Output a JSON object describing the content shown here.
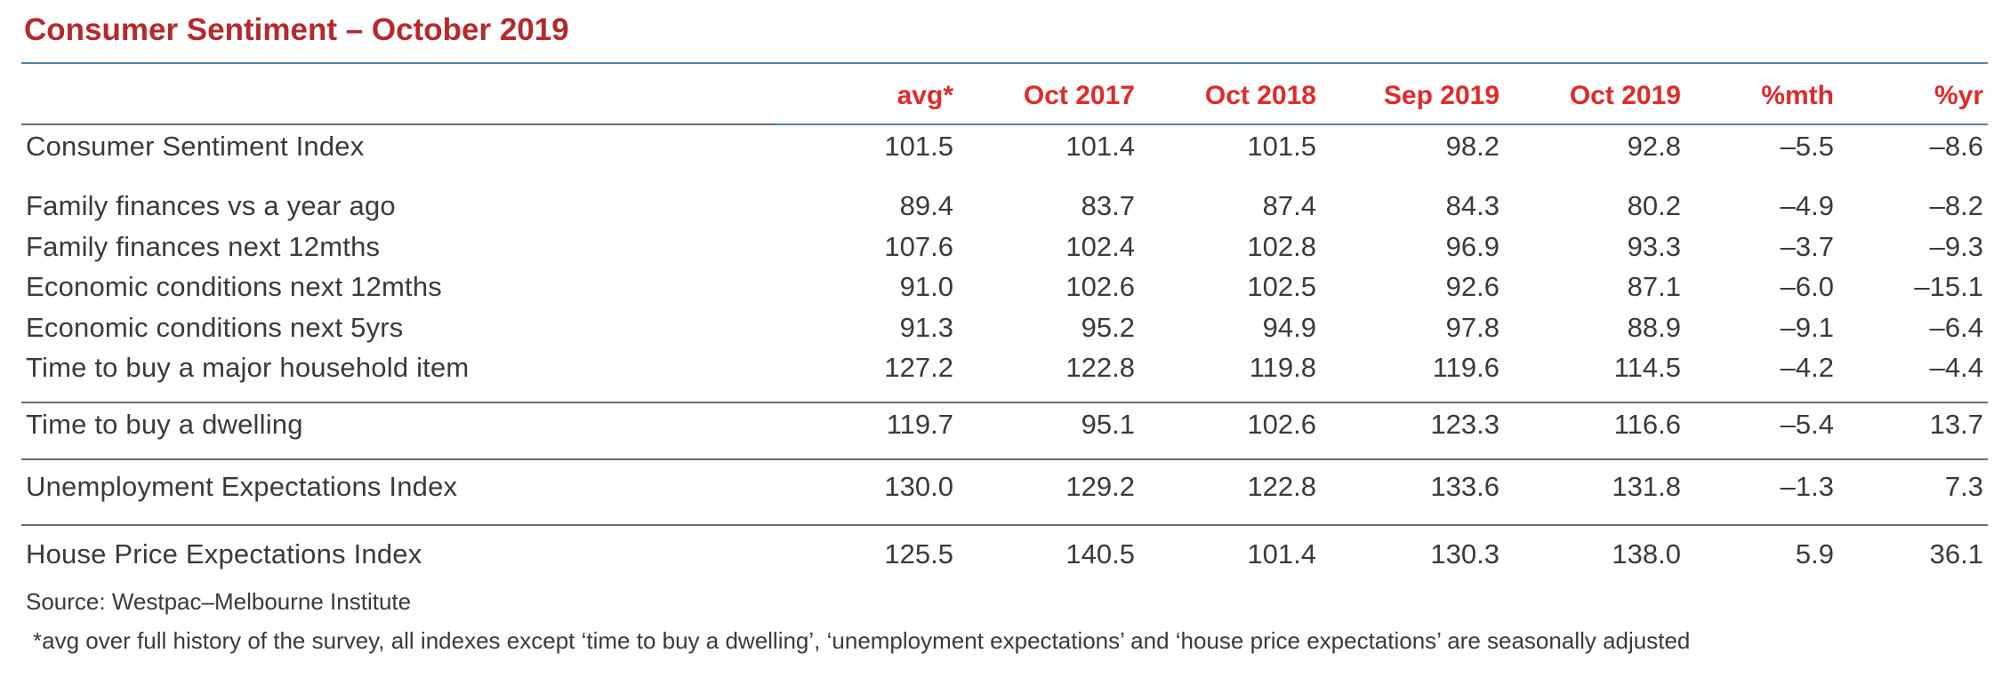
{
  "title": "Consumer Sentiment – October 2019",
  "columns": [
    "avg*",
    "Oct 2017",
    "Oct 2018",
    "Sep 2019",
    "Oct 2019",
    "%mth",
    "%yr"
  ],
  "rows": [
    {
      "label": "Consumer Sentiment Index",
      "values": [
        "101.5",
        "101.4",
        "101.5",
        "98.2",
        "92.8",
        "–5.5",
        "–8.6"
      ]
    },
    {
      "label": "Family finances vs a year ago",
      "values": [
        "89.4",
        "83.7",
        "87.4",
        "84.3",
        "80.2",
        "–4.9",
        "–8.2"
      ]
    },
    {
      "label": "Family finances next 12mths",
      "values": [
        "107.6",
        "102.4",
        "102.8",
        "96.9",
        "93.3",
        "–3.7",
        "–9.3"
      ]
    },
    {
      "label": "Economic conditions next 12mths",
      "values": [
        "91.0",
        "102.6",
        "102.5",
        "92.6",
        "87.1",
        "–6.0",
        "–15.1"
      ]
    },
    {
      "label": "Economic conditions next 5yrs",
      "values": [
        "91.3",
        "95.2",
        "94.9",
        "97.8",
        "88.9",
        "–9.1",
        "–6.4"
      ]
    },
    {
      "label": "Time to buy a major household item",
      "values": [
        "127.2",
        "122.8",
        "119.8",
        "119.6",
        "114.5",
        "–4.2",
        "–4.4"
      ]
    },
    {
      "label": "Time to buy a dwelling",
      "values": [
        "119.7",
        "95.1",
        "102.6",
        "123.3",
        "116.6",
        "–5.4",
        "13.7"
      ]
    },
    {
      "label": "Unemployment Expectations Index",
      "values": [
        "130.0",
        "129.2",
        "122.8",
        "133.6",
        "131.8",
        "–1.3",
        "7.3"
      ]
    },
    {
      "label": "House Price Expectations Index",
      "values": [
        "125.5",
        "140.5",
        "101.4",
        "130.3",
        "138.0",
        "5.9",
        "36.1"
      ]
    }
  ],
  "source": "Source: Westpac–Melbourne Institute",
  "footnote": "*avg over full history of the survey, all indexes except ‘time to buy a dwelling’, ‘unemployment expectations’ and ‘house price expectations’ are seasonally adjusted",
  "colors": {
    "title": "#b5292d",
    "header": "#e02a2a",
    "text": "#3a3a3a",
    "top_rule": "#4f86a6"
  }
}
